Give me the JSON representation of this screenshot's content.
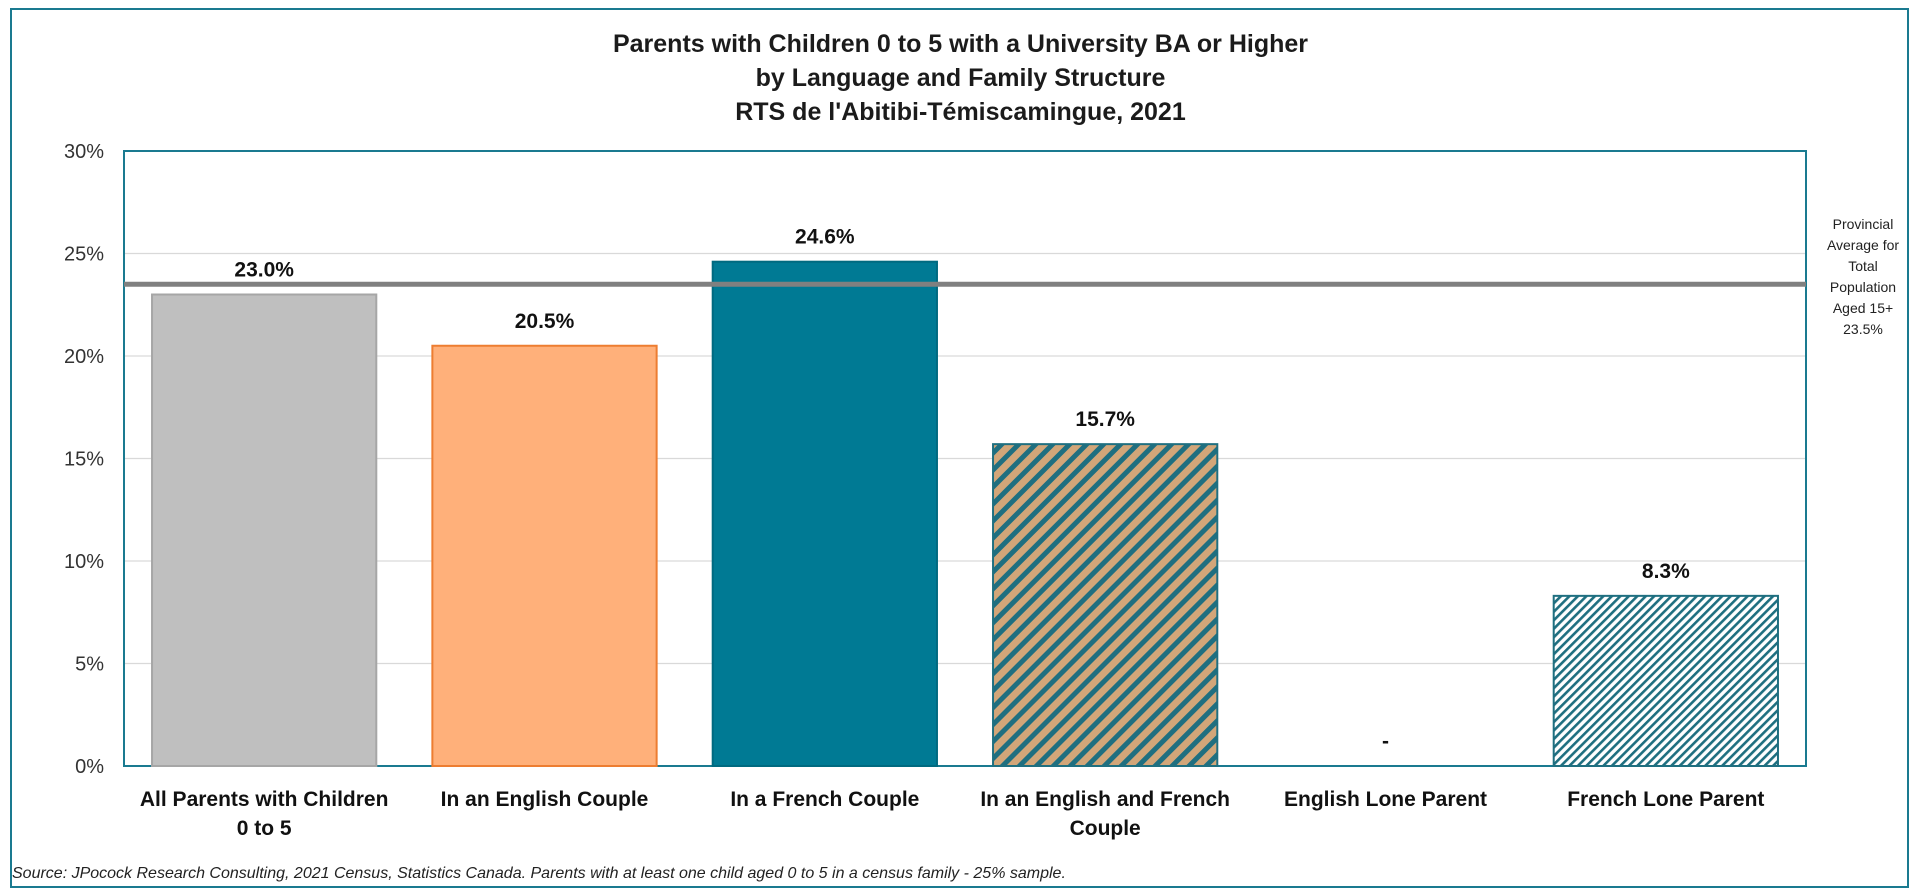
{
  "chart_data": {
    "type": "bar",
    "title": "Parents with Children 0 to 5 with a University BA or Higher",
    "subtitle": "by Language and Family Structure",
    "subtitle2": "RTS de l'Abitibi-Témiscamingue, 2021",
    "categories": [
      [
        "All Parents with Children",
        "0 to 5"
      ],
      [
        "In an English Couple"
      ],
      [
        "In a French Couple"
      ],
      [
        "In an English and French",
        "Couple"
      ],
      [
        "English Lone Parent"
      ],
      [
        "French Lone Parent"
      ]
    ],
    "values": [
      23.0,
      20.5,
      24.6,
      15.7,
      null,
      8.3
    ],
    "data_labels": [
      "23.0%",
      "20.5%",
      "24.6%",
      "15.7%",
      "-",
      "8.3%"
    ],
    "ylim": [
      0,
      30
    ],
    "yticks": [
      0,
      5,
      10,
      15,
      20,
      25,
      30
    ],
    "ytick_labels": [
      "0%",
      "5%",
      "10%",
      "15%",
      "20%",
      "25%",
      "30%"
    ],
    "grid": true,
    "bar_styles": [
      {
        "fill": "#bfbfbf",
        "stroke": "#a6a6a6",
        "pattern": "none"
      },
      {
        "fill": "#ffb07a",
        "stroke": "#ed7d31",
        "pattern": "none"
      },
      {
        "fill": "#007a94",
        "stroke": "#006a80",
        "pattern": "none"
      },
      {
        "fill": "#d2a679",
        "stroke": "#1f6f80",
        "pattern": "diagonal-wide"
      },
      {
        "fill": "#ffffff",
        "stroke": "#1f6f80",
        "pattern": "none"
      },
      {
        "fill": "#ffffff",
        "stroke": "#1f6f80",
        "pattern": "diagonal-fine"
      }
    ],
    "reference_line": {
      "value": 23.5,
      "color": "#808080",
      "label_lines": [
        "Provincial",
        "Average for",
        "Total",
        "Population",
        "Aged 15+",
        "23.5%"
      ]
    }
  },
  "source": "Source: JPocock Research Consulting, 2021 Census, Statistics Canada. Parents with at least one child aged 0 to 5 in a census family - 25% sample."
}
